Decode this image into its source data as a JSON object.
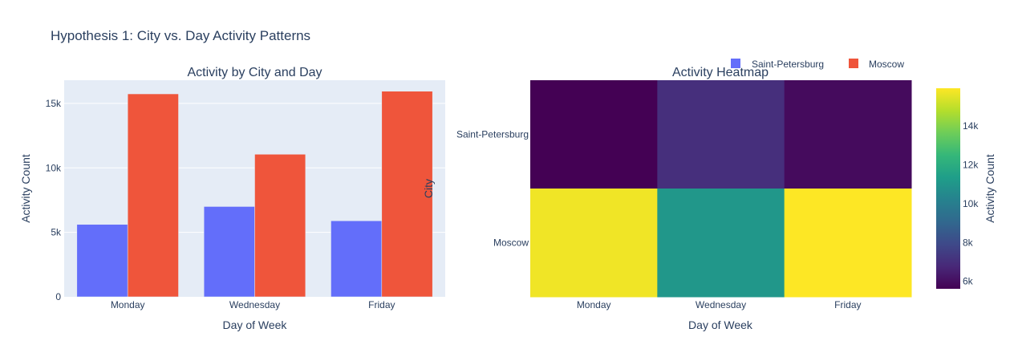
{
  "figure": {
    "title": "Hypothesis 1: City vs. Day Activity Patterns"
  },
  "legend": [
    {
      "name": "Saint-Petersburg",
      "color": "#636efa"
    },
    {
      "name": "Moscow",
      "color": "#ef553b"
    }
  ],
  "chart_data": [
    {
      "type": "bar",
      "title": "Activity by City and Day",
      "xlabel": "Day of Week",
      "ylabel": "Activity Count",
      "categories": [
        "Monday",
        "Wednesday",
        "Friday"
      ],
      "ylim": [
        0,
        16800
      ],
      "yticks": [
        0,
        5000,
        10000,
        15000
      ],
      "ytick_labels": [
        "0",
        "5k",
        "10k",
        "15k"
      ],
      "series": [
        {
          "name": "Saint-Petersburg",
          "color": "#636efa",
          "values": [
            5614,
            7003,
            5895
          ]
        },
        {
          "name": "Moscow",
          "color": "#ef553b",
          "values": [
            15740,
            11056,
            15945
          ]
        }
      ],
      "background": "#e5ecf6",
      "grid": true
    },
    {
      "type": "heatmap",
      "title": "Activity Heatmap",
      "xlabel": "Day of Week",
      "ylabel": "City",
      "x": [
        "Monday",
        "Wednesday",
        "Friday"
      ],
      "y": [
        "Saint-Petersburg",
        "Moscow"
      ],
      "z": [
        [
          5614,
          7003,
          5895
        ],
        [
          15740,
          11056,
          15945
        ]
      ],
      "colorscale": "Viridis",
      "colorbar": {
        "title": "Activity Count",
        "ticks": [
          6000,
          8000,
          10000,
          12000,
          14000
        ],
        "tick_labels": [
          "6k",
          "8k",
          "10k",
          "12k",
          "14k"
        ]
      }
    }
  ]
}
